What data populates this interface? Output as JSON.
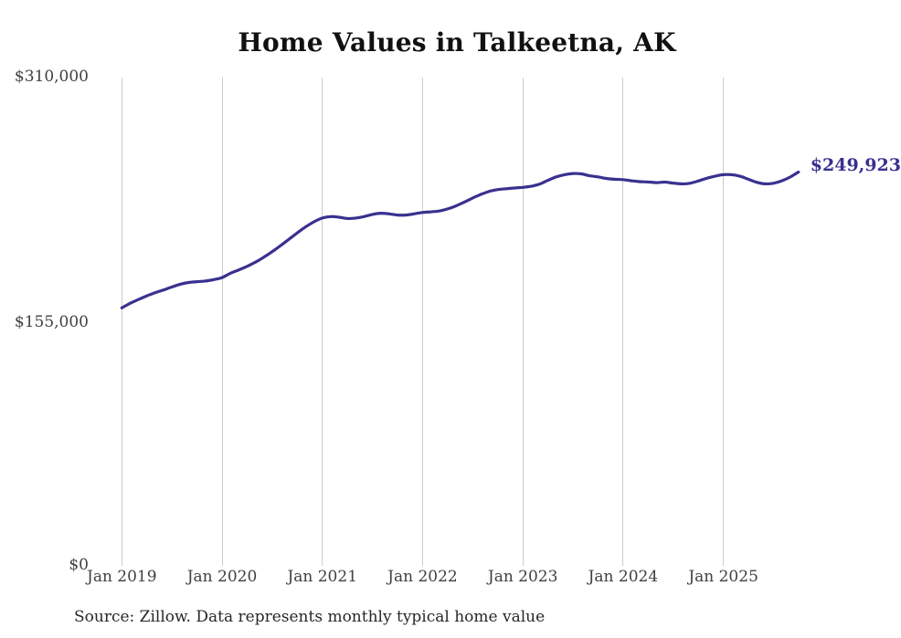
{
  "header": {
    "title": "Home Values in Talkeetna, AK"
  },
  "footer": {
    "source_note": "Source: Zillow. Data represents monthly typical home value"
  },
  "annotations": {
    "latest_value_label": "$249,923"
  },
  "axes": {
    "y_ticks": [
      "$310,000",
      "$155,000",
      "$0"
    ],
    "x_ticks": [
      "Jan 2019",
      "Jan 2020",
      "Jan 2021",
      "Jan 2022",
      "Jan 2023",
      "Jan 2024",
      "Jan 2025"
    ]
  },
  "colors": {
    "line": "#39318f",
    "latest_label": "#39318f",
    "grid": "#cccccc",
    "axis_text": "#404040",
    "title_text": "#111111"
  },
  "chart_data": {
    "type": "line",
    "title": "Home Values in Talkeetna, AK",
    "ylabel": "",
    "xlabel": "",
    "ylim": [
      0,
      310000
    ],
    "y_tick_values": [
      310000,
      155000,
      0
    ],
    "x_tick_labels": [
      "Jan 2019",
      "Jan 2020",
      "Jan 2021",
      "Jan 2022",
      "Jan 2023",
      "Jan 2024",
      "Jan 2025"
    ],
    "grid": "vertical-only",
    "legend": "none",
    "start_month": "Jan 2019",
    "frequency": "monthly",
    "latest_value": 249923,
    "series": [
      {
        "name": "Typical home value",
        "values": [
          164400,
          167300,
          169700,
          172000,
          174000,
          175700,
          177600,
          179300,
          180400,
          180900,
          181300,
          182200,
          183500,
          186200,
          188300,
          190600,
          193200,
          196300,
          199800,
          203600,
          207600,
          211600,
          215400,
          218600,
          221000,
          221900,
          221500,
          220700,
          221000,
          221900,
          223300,
          224000,
          223600,
          222900,
          222900,
          223600,
          224500,
          224900,
          225400,
          226700,
          228600,
          231000,
          233600,
          235900,
          237800,
          238900,
          239400,
          239900,
          240300,
          241000,
          242300,
          244700,
          246900,
          248300,
          249000,
          248800,
          247600,
          246900,
          245900,
          245400,
          245200,
          244400,
          243900,
          243700,
          243300,
          243600,
          243000,
          242500,
          242900,
          244300,
          246000,
          247300,
          248300,
          248300,
          247300,
          245400,
          243500,
          242500,
          242900,
          244400,
          246800,
          249923
        ]
      }
    ]
  }
}
